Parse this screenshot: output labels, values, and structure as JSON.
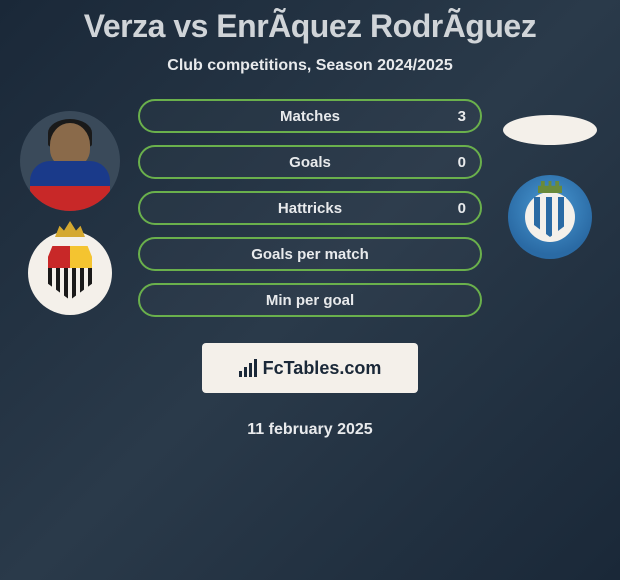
{
  "title": "Verza vs EnrÃ­quez RodrÃ­guez",
  "subtitle": "Club competitions, Season 2024/2025",
  "stats": [
    {
      "label": "Matches",
      "right_value": "3"
    },
    {
      "label": "Goals",
      "right_value": "0"
    },
    {
      "label": "Hattricks",
      "right_value": "0"
    },
    {
      "label": "Goals per match",
      "right_value": ""
    },
    {
      "label": "Min per goal",
      "right_value": ""
    }
  ],
  "left_player": {
    "name": "verza-player-photo"
  },
  "left_club": {
    "name": "cartagena-badge"
  },
  "right_oval": {
    "name": "player-placeholder-oval"
  },
  "right_club": {
    "name": "malaga-badge"
  },
  "fctables_label": "FcTables.com",
  "date": "11 february 2025",
  "colors": {
    "accent_border": "#6ab04c",
    "background_start": "#1a2838",
    "background_end": "#2a3a4a",
    "text_light": "#e8eaec",
    "title_color": "#d0d4d8",
    "box_bg": "#f4f0ea"
  }
}
